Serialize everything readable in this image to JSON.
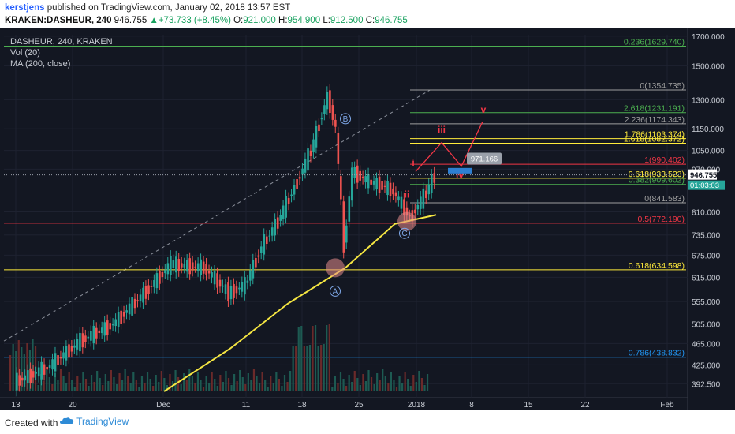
{
  "header": {
    "user": "kerstjens",
    "published_text": "published on TradingView.com, January 02, 2018 13:57 EST",
    "symbol": "KRAKEN:DASHEUR, 240",
    "last": "946.755",
    "change": "▲+73.733 (+8.45%)",
    "open": "921.000",
    "high": "954.900",
    "low": "912.500",
    "close": "946.755",
    "labels": {
      "o": "O:",
      "h": "H:",
      "l": "L:",
      "c": "C:"
    }
  },
  "legend": {
    "line1": "DASHEUR, 240, KRAKEN",
    "line2": "Vol (20)",
    "line3": "MA (200, close)"
  },
  "footer": {
    "created_with": "Created with",
    "brand": "TradingView"
  },
  "colors": {
    "background": "#131722",
    "up": "#26a69a",
    "down": "#ef5350",
    "ma": "#f5e642",
    "accent": "#2962ff"
  },
  "chart_data": {
    "type": "candlestick",
    "ylim": [
      380,
      1710
    ],
    "y_scale": "log",
    "y_ticks": [
      "1700.000",
      "1500.000",
      "1300.000",
      "1150.000",
      "1050.000",
      "970.000",
      "810.000",
      "735.000",
      "675.000",
      "615.000",
      "555.000",
      "505.000",
      "465.000",
      "425.000",
      "392.500"
    ],
    "x_ticks": [
      "13",
      "20",
      "Dec",
      "11",
      "18",
      "25",
      "2018",
      "8",
      "15",
      "22",
      "Feb"
    ],
    "price_label": "946.755",
    "time_label": "01:03:03",
    "series": [
      {
        "name": "DASHEUR price (approx. daily closes)",
        "x": [
          "Nov 12",
          "Nov 16",
          "Nov 20",
          "Nov 24",
          "Nov 28",
          "Dec 1",
          "Dec 5",
          "Dec 8",
          "Dec 10",
          "Dec 12",
          "Dec 14",
          "Dec 16",
          "Dec 18",
          "Dec 20",
          "Dec 21",
          "Dec 22",
          "Dec 23",
          "Dec 25",
          "Dec 27",
          "Dec 28",
          "Dec 30",
          "Jan 1",
          "Jan 2"
        ],
        "values": [
          395,
          420,
          470,
          505,
          580,
          650,
          640,
          575,
          595,
          700,
          780,
          900,
          1050,
          1320,
          1150,
          700,
          960,
          920,
          900,
          880,
          790,
          880,
          946
        ]
      },
      {
        "name": "MA (200, close)",
        "x": [
          "Nov 30",
          "Dec 8",
          "Dec 15",
          "Dec 22",
          "Dec 28",
          "Jan 2"
        ],
        "values": [
          380,
          455,
          550,
          640,
          770,
          800
        ]
      }
    ],
    "fib_levels": [
      {
        "label": "0.236(1629.740)",
        "value": 1629.74,
        "color": "#4caf50"
      },
      {
        "label": "0(1354.735)",
        "value": 1354.735,
        "color": "#9e9e9e"
      },
      {
        "label": "2.618(1231.191)",
        "value": 1231.191,
        "color": "#4caf50"
      },
      {
        "label": "2.236(1174.343)",
        "value": 1174.343,
        "color": "#9e9e9e"
      },
      {
        "label": "1.786(1103.374)",
        "value": 1103.374,
        "color": "#ffeb3b"
      },
      {
        "label": "1.618(1082.372)",
        "value": 1082.372,
        "color": "#ffeb3b"
      },
      {
        "label": "1(990.402)",
        "value": 990.402,
        "color": "#f23645"
      },
      {
        "label": "0.618(933.523)",
        "value": 933.523,
        "color": "#ffeb3b"
      },
      {
        "label": "0.382(909.602)",
        "value": 909.602,
        "color": "#4caf50"
      },
      {
        "label": "0(841.583)",
        "value": 841.583,
        "color": "#9e9e9e"
      },
      {
        "label": "0.5(772.190)",
        "value": 772.19,
        "color": "#f23645"
      },
      {
        "label": "0.618(634.598)",
        "value": 634.598,
        "color": "#ffeb3b"
      },
      {
        "label": "0.786(438.832)",
        "value": 438.832,
        "color": "#2196f3"
      }
    ],
    "wave_labels": {
      "A": "A",
      "B": "B",
      "C": "C",
      "i": "i",
      "ii": "ii",
      "iii": "iii",
      "iv": "iv",
      "v": "v"
    },
    "target_callout": "971.166",
    "volume_ma_label": "Vol (20)"
  }
}
